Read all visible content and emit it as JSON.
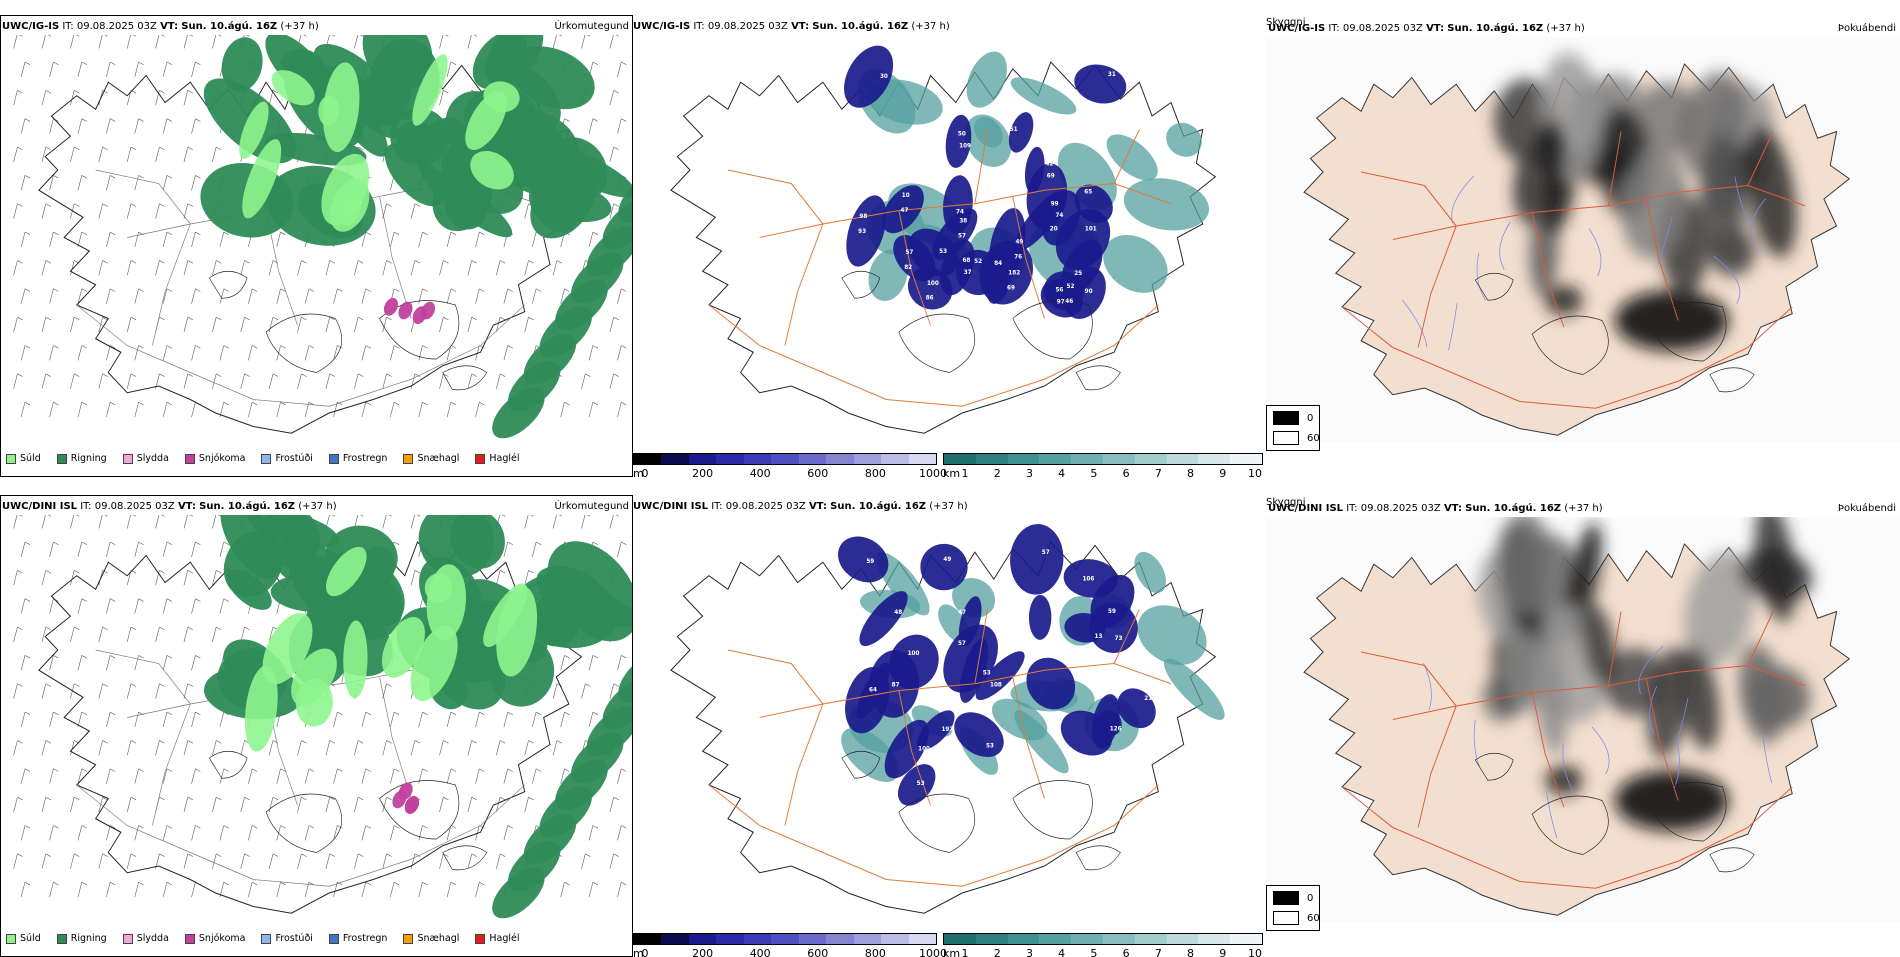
{
  "rows": [
    {
      "model": "UWC/IG-IS",
      "it_label": "IT:",
      "it_value": "09.08.2025 03Z",
      "vt_label": "VT:",
      "vt_value": "Sun. 10.ágú. 16Z",
      "lead": "(+37 h)",
      "labels": [
        "47",
        "42",
        "69",
        "76",
        "68",
        "57",
        "46",
        "50",
        "47",
        "86",
        "56",
        "93",
        "82",
        "84",
        "30",
        "20",
        "31",
        "53",
        "99",
        "101",
        "90",
        "74",
        "52",
        "74",
        "25",
        "65",
        "51",
        "69",
        "182",
        "49",
        "37",
        "38",
        "52",
        "109",
        "10",
        "100",
        "97",
        "98",
        "57"
      ]
    },
    {
      "model": "UWC/DINI ISL",
      "it_label": "IT:",
      "it_value": "09.08.2025 03Z",
      "vt_label": "VT:",
      "vt_value": "Sun. 10.ágú. 16Z",
      "lead": "(+37 h)",
      "labels": [
        "57",
        "48",
        "53",
        "53",
        "57",
        "59",
        "73",
        "49",
        "87",
        "59",
        "100",
        "106",
        "108",
        "47",
        "100",
        "13",
        "210",
        "197",
        "126",
        "64",
        "53"
      ]
    }
  ],
  "panel_titles": {
    "precip": "Úrkomutegund",
    "cloud": "Skyggni",
    "fog": "Þokuábendi"
  },
  "precip_legend": [
    {
      "label": "Súld",
      "color": "#8ef58e"
    },
    {
      "label": "Rigning",
      "color": "#2e8b57"
    },
    {
      "label": "Slydda",
      "color": "#f4a6d7"
    },
    {
      "label": "Snjókoma",
      "color": "#c2409e"
    },
    {
      "label": "Frostúði",
      "color": "#87b8f0"
    },
    {
      "label": "Frostregn",
      "color": "#3a78c8"
    },
    {
      "label": "Snæhagl",
      "color": "#f39c12"
    },
    {
      "label": "Haglél",
      "color": "#e31a1c"
    }
  ],
  "cloud_base_scale": {
    "unit": "m",
    "ticks": [
      "0",
      "200",
      "400",
      "600",
      "800",
      "1000"
    ],
    "colors": [
      "#000000",
      "#0b0b4e",
      "#1a1a8c",
      "#2a2aa8",
      "#3b3bb8",
      "#5050c0",
      "#6a6ac8",
      "#8585d0",
      "#a0a0dc",
      "#bcbce6",
      "#d8d8f0"
    ]
  },
  "visibility_scale": {
    "unit": "km",
    "ticks": [
      "1",
      "2",
      "3",
      "4",
      "5",
      "6",
      "7",
      "8",
      "9",
      "10"
    ],
    "colors": [
      "#1f6f6f",
      "#2e8080",
      "#3f9090",
      "#55a0a0",
      "#6eb0b0",
      "#88bebe",
      "#a3cccc",
      "#bedada",
      "#d8e8e8",
      "#eef6f6"
    ]
  },
  "fog_scale": {
    "ticks": [
      "0",
      "60"
    ],
    "colors": [
      "#000000",
      "#ffffff"
    ]
  },
  "colors": {
    "land_fog": "#f3dfcf",
    "roads": "#e07a3a",
    "rivers": "#7b8cf0",
    "coast": "#111111",
    "rain": "#2e8b57",
    "drizzle": "#8ef58e",
    "snow": "#c2409e",
    "cloudbase_dark": "#1a1a8c",
    "visibility": "#55a0a0"
  }
}
